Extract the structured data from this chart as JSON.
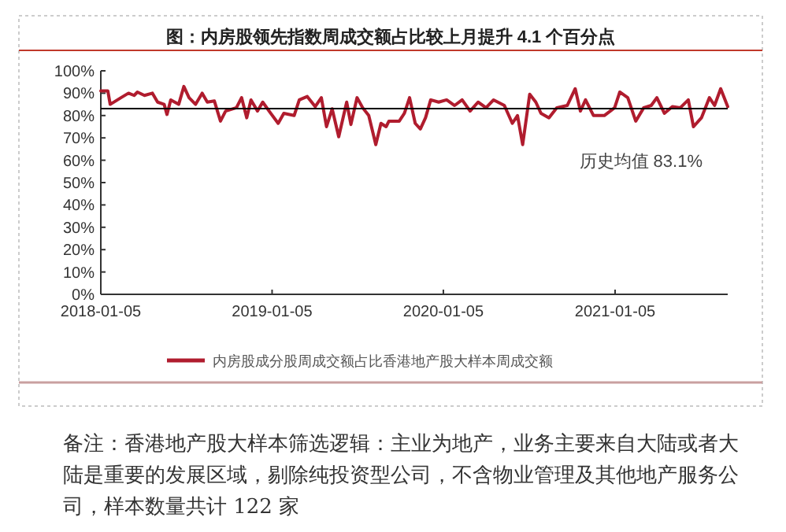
{
  "chart_data": {
    "type": "line",
    "title": "图：内房股领先指数周成交额占比较上月提升 4.1 个百分点",
    "x": [
      "2018-01-05",
      "2018-01-20",
      "2018-01-25",
      "2018-02-17",
      "2018-03-05",
      "2018-03-17",
      "2018-03-24",
      "2018-04-08",
      "2018-04-25",
      "2018-05-06",
      "2018-05-20",
      "2018-05-26",
      "2018-06-03",
      "2018-06-20",
      "2018-07-01",
      "2018-07-12",
      "2018-07-26",
      "2018-08-09",
      "2018-08-20",
      "2018-09-04",
      "2018-09-17",
      "2018-09-28",
      "2018-10-21",
      "2018-11-01",
      "2018-11-12",
      "2018-11-21",
      "2018-12-05",
      "2018-12-16",
      "2019-01-02",
      "2019-01-18",
      "2019-01-30",
      "2019-02-21",
      "2019-03-04",
      "2019-03-21",
      "2019-04-07",
      "2019-04-20",
      "2019-05-01",
      "2019-05-13",
      "2019-05-27",
      "2019-06-13",
      "2019-06-22",
      "2019-07-05",
      "2019-07-17",
      "2019-07-30",
      "2019-08-14",
      "2019-08-25",
      "2019-09-05",
      "2019-09-11",
      "2019-10-03",
      "2019-10-14",
      "2019-10-25",
      "2019-11-06",
      "2019-11-17",
      "2019-11-28",
      "2019-12-09",
      "2019-12-26",
      "2020-01-12",
      "2020-01-29",
      "2020-02-14",
      "2020-03-02",
      "2020-03-19",
      "2020-04-05",
      "2020-04-21",
      "2020-05-14",
      "2020-05-31",
      "2020-06-11",
      "2020-06-22",
      "2020-07-07",
      "2020-07-20",
      "2020-07-31",
      "2020-08-17",
      "2020-09-03",
      "2020-09-25",
      "2020-10-12",
      "2020-10-23",
      "2020-11-03",
      "2020-11-20",
      "2020-12-13",
      "2021-01-04",
      "2021-01-15",
      "2021-02-01",
      "2021-02-18",
      "2021-03-07",
      "2021-03-23",
      "2021-04-04",
      "2021-04-20",
      "2021-05-07",
      "2021-05-24",
      "2021-06-10",
      "2021-06-21",
      "2021-07-08",
      "2021-07-25",
      "2021-08-05",
      "2021-08-18",
      "2021-09-02"
    ],
    "series": [
      {
        "name": "内房股成分股周成交额占比香港地产股大样本周成交额",
        "color": "#b01c2e",
        "values": [
          91,
          91,
          85,
          88,
          90,
          89,
          90.5,
          89,
          90,
          86,
          85,
          80.5,
          87,
          85,
          93,
          88,
          85,
          90,
          86,
          86.5,
          77.5,
          82,
          83.5,
          88,
          79,
          87,
          82,
          86,
          81,
          76.5,
          81,
          80,
          87,
          88.5,
          84,
          88,
          75,
          83,
          70.5,
          86,
          76,
          88,
          83.5,
          80,
          67,
          76.5,
          75,
          77.5,
          77.5,
          81,
          88,
          76.5,
          74,
          79,
          87,
          86,
          87,
          84.5,
          87,
          82,
          86,
          83.5,
          87,
          84.5,
          76.5,
          80,
          67,
          89.5,
          86,
          81,
          79,
          83.5,
          84.5,
          92,
          82,
          87,
          80,
          80,
          83.5,
          90.5,
          88,
          77.5,
          83.5,
          84.5,
          88,
          81,
          84,
          83.5,
          87,
          75,
          79,
          88,
          84.5,
          92,
          84
        ]
      }
    ],
    "xlim": [
      "2018-01-05",
      "2021-09-02"
    ],
    "xticks": [
      "2018-01-05",
      "2019-01-05",
      "2020-01-05",
      "2021-01-05"
    ],
    "ylim": [
      0,
      100
    ],
    "yticks": [
      {
        "value": 0,
        "label": "0%"
      },
      {
        "value": 10,
        "label": "10%"
      },
      {
        "value": 20,
        "label": "20%"
      },
      {
        "value": 30,
        "label": "30%"
      },
      {
        "value": 40,
        "label": "40%"
      },
      {
        "value": 50,
        "label": "50%"
      },
      {
        "value": 60,
        "label": "60%"
      },
      {
        "value": 70,
        "label": "70%"
      },
      {
        "value": 80,
        "label": "80%"
      },
      {
        "value": 90,
        "label": "90%"
      },
      {
        "value": 100,
        "label": "100%"
      }
    ],
    "ref_lines": [
      {
        "axis": "y",
        "value": 83.1,
        "label": "历史均值 83.1%",
        "color": "#000000"
      }
    ],
    "annotations": [
      "备注：香港地产股大样本筛选逻辑：主业为地产，业务主要来自大陆或者大陆是重要的发展区域，剔除纯投资型公司，不含物业管理及其他地产服务公司，样本数量共计 122 家"
    ],
    "legend": "bottom",
    "marker": "none",
    "line_style": "solid"
  }
}
